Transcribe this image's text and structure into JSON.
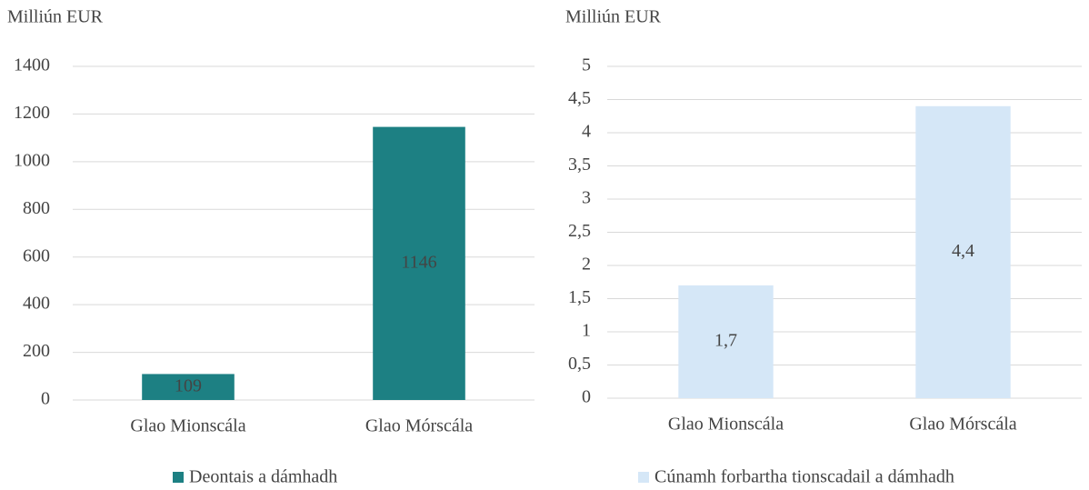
{
  "chart_data": [
    {
      "type": "bar",
      "ylabel": "Milliún EUR",
      "categories": [
        "Glao Mionscála",
        "Glao Mórscála"
      ],
      "series": [
        {
          "name": "Deontais a dámhadh",
          "color": "#1d8083",
          "values": [
            109,
            1146
          ]
        }
      ],
      "ylim": [
        0,
        1400
      ],
      "yticks": [
        0,
        200,
        400,
        600,
        800,
        1000,
        1200,
        1400
      ],
      "grid": true,
      "legend": "bottom"
    },
    {
      "type": "bar",
      "ylabel": "Milliún EUR",
      "categories": [
        "Glao Mionscála",
        "Glao Mórscála"
      ],
      "series": [
        {
          "name": "Cúnamh forbartha tionscadail a dámhadh",
          "color": "#d5e7f7",
          "values": [
            1.7,
            4.4
          ],
          "value_labels": [
            "1,7",
            "4,4"
          ]
        }
      ],
      "ylim": [
        0,
        5
      ],
      "yticks": [
        0,
        {
          "value": 0.5,
          "label": "0,5"
        },
        1,
        {
          "value": 1.5,
          "label": "1,5"
        },
        2,
        {
          "value": 2.5,
          "label": "2,5"
        },
        3,
        {
          "value": 3.5,
          "label": "3,5"
        },
        4,
        {
          "value": 4.5,
          "label": "4,5"
        },
        5
      ],
      "grid": true,
      "legend": "bottom"
    }
  ]
}
